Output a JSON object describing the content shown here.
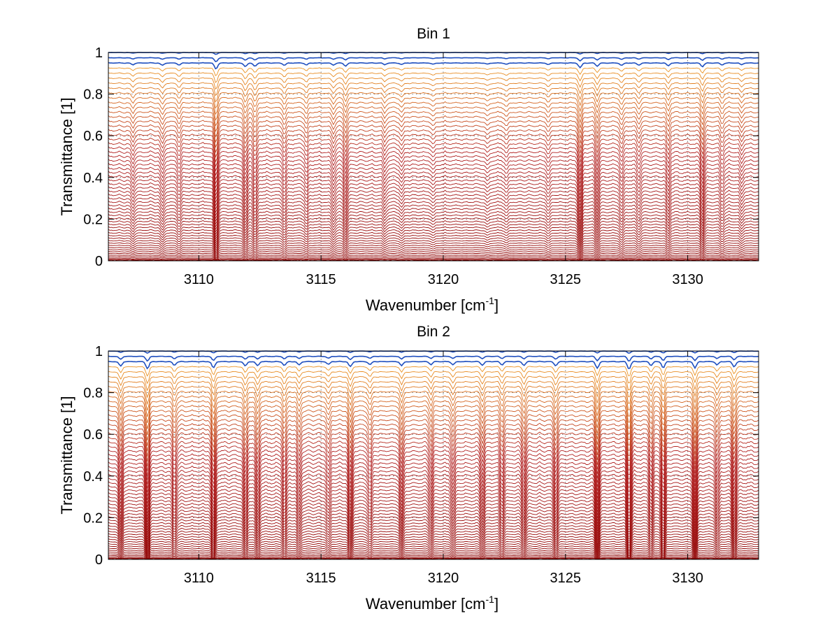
{
  "chart_data": [
    {
      "type": "line",
      "title": "Bin 1",
      "xlabel": "Wavenumber [cm",
      "xlabel_sup": "-1",
      "xlabel_end": "]",
      "ylabel": "Transmittance [1]",
      "xlim": [
        3106.3,
        3132.9
      ],
      "ylim": [
        0,
        1
      ],
      "xticks": [
        3110,
        3115,
        3120,
        3125,
        3130
      ],
      "yticks": [
        0,
        0.2,
        0.4,
        0.6,
        0.8,
        1
      ],
      "grid": true,
      "curve_count": 60,
      "profile": "bin1",
      "color_top": "#1f4fbf",
      "color_upper": "#f5a623",
      "color_lower": "#b22222",
      "color_bottom": "#8b0000",
      "absorption_lines": [
        {
          "x": 3107.3,
          "depth": 0.25
        },
        {
          "x": 3108.5,
          "depth": 0.35
        },
        {
          "x": 3109.2,
          "depth": 0.3
        },
        {
          "x": 3110.7,
          "depth": 0.9
        },
        {
          "x": 3111.9,
          "depth": 0.55
        },
        {
          "x": 3112.3,
          "depth": 0.5
        },
        {
          "x": 3113.5,
          "depth": 0.35
        },
        {
          "x": 3114.4,
          "depth": 0.3
        },
        {
          "x": 3115.5,
          "depth": 0.3
        },
        {
          "x": 3116.0,
          "depth": 0.45
        },
        {
          "x": 3117.6,
          "depth": 0.25
        },
        {
          "x": 3118.3,
          "depth": 0.25
        },
        {
          "x": 3119.6,
          "depth": 0.2
        },
        {
          "x": 3121.8,
          "depth": 0.2
        },
        {
          "x": 3122.6,
          "depth": 0.2
        },
        {
          "x": 3124.3,
          "depth": 0.25
        },
        {
          "x": 3125.6,
          "depth": 0.7
        },
        {
          "x": 3126.3,
          "depth": 0.45
        },
        {
          "x": 3127.3,
          "depth": 0.35
        },
        {
          "x": 3128.0,
          "depth": 0.3
        },
        {
          "x": 3129.2,
          "depth": 0.4
        },
        {
          "x": 3130.6,
          "depth": 0.55
        },
        {
          "x": 3131.4,
          "depth": 0.3
        },
        {
          "x": 3132.2,
          "depth": 0.25
        }
      ]
    },
    {
      "type": "line",
      "title": "Bin 2",
      "xlabel": "Wavenumber [cm",
      "xlabel_sup": "-1",
      "xlabel_end": "]",
      "ylabel": "Transmittance [1]",
      "xlim": [
        3106.3,
        3132.9
      ],
      "ylim": [
        0,
        1
      ],
      "xticks": [
        3110,
        3115,
        3120,
        3125,
        3130
      ],
      "yticks": [
        0,
        0.2,
        0.4,
        0.6,
        0.8,
        1
      ],
      "grid": true,
      "curve_count": 60,
      "profile": "bin2",
      "color_top": "#1f4fbf",
      "color_upper": "#f5a623",
      "color_lower": "#b22222",
      "color_bottom": "#8b0000",
      "absorption_lines": [
        {
          "x": 3106.8,
          "depth": 0.6
        },
        {
          "x": 3107.9,
          "depth": 0.95
        },
        {
          "x": 3109.0,
          "depth": 0.5
        },
        {
          "x": 3110.6,
          "depth": 0.85
        },
        {
          "x": 3111.9,
          "depth": 0.6
        },
        {
          "x": 3112.4,
          "depth": 0.55
        },
        {
          "x": 3113.5,
          "depth": 0.5
        },
        {
          "x": 3114.1,
          "depth": 0.45
        },
        {
          "x": 3115.3,
          "depth": 0.4
        },
        {
          "x": 3116.2,
          "depth": 0.7
        },
        {
          "x": 3117.0,
          "depth": 0.4
        },
        {
          "x": 3118.3,
          "depth": 0.55
        },
        {
          "x": 3119.5,
          "depth": 0.4
        },
        {
          "x": 3120.4,
          "depth": 0.4
        },
        {
          "x": 3121.6,
          "depth": 0.45
        },
        {
          "x": 3122.4,
          "depth": 0.45
        },
        {
          "x": 3123.3,
          "depth": 0.5
        },
        {
          "x": 3124.6,
          "depth": 0.55
        },
        {
          "x": 3126.3,
          "depth": 0.85
        },
        {
          "x": 3127.6,
          "depth": 1.0
        },
        {
          "x": 3128.5,
          "depth": 0.5
        },
        {
          "x": 3129.0,
          "depth": 0.85
        },
        {
          "x": 3130.3,
          "depth": 0.85
        },
        {
          "x": 3131.2,
          "depth": 0.45
        },
        {
          "x": 3131.9,
          "depth": 0.7
        }
      ]
    }
  ]
}
